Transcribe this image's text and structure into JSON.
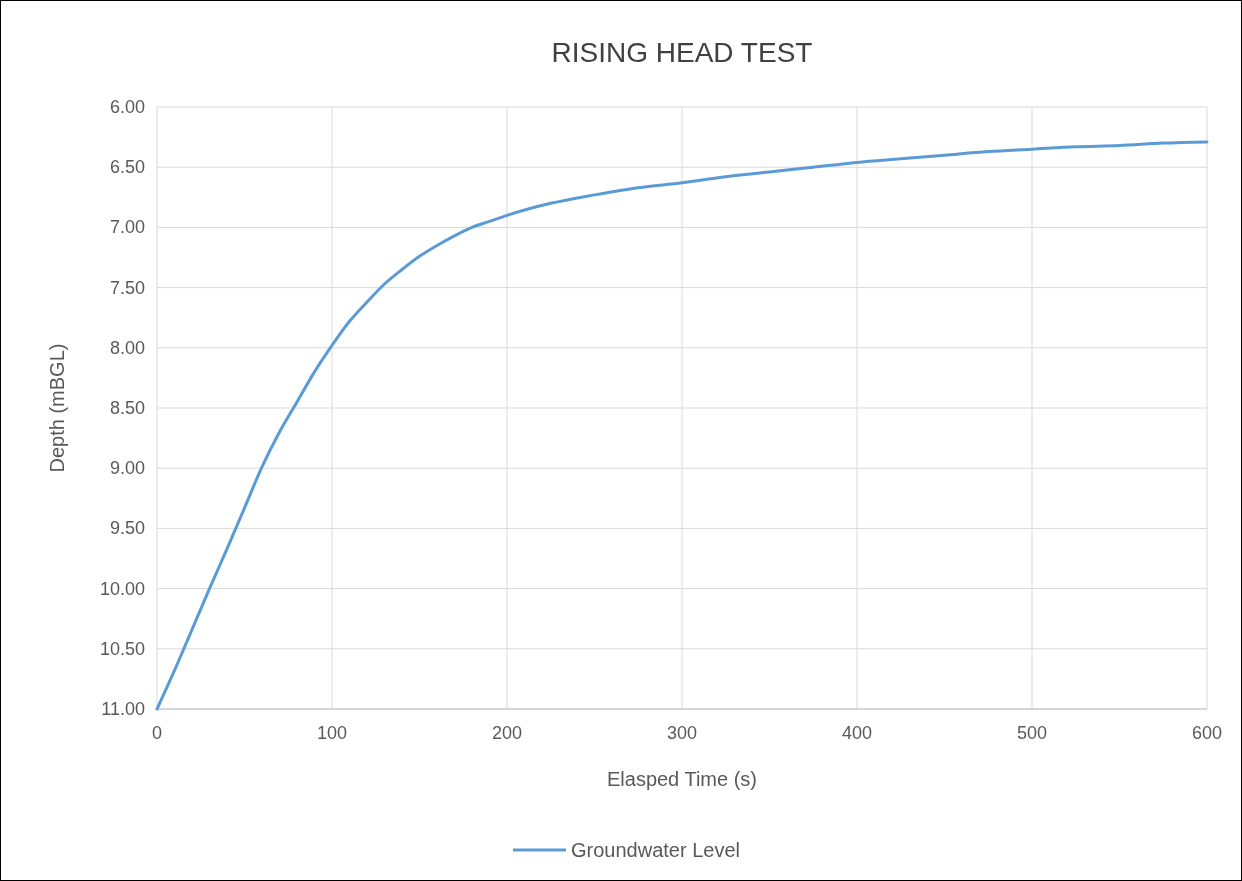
{
  "chart_data": {
    "type": "line",
    "title": "RISING HEAD TEST",
    "xlabel": "Elasped Time (s)",
    "ylabel": "Depth (mBGL)",
    "x": [
      0,
      10,
      20,
      30,
      40,
      50,
      60,
      70,
      80,
      90,
      100,
      110,
      120,
      130,
      140,
      150,
      160,
      170,
      180,
      190,
      200,
      225,
      250,
      275,
      300,
      325,
      350,
      375,
      400,
      425,
      450,
      475,
      500,
      525,
      550,
      575,
      600
    ],
    "series": [
      {
        "name": "Groundwater Level",
        "color": "#5b9bd5",
        "values": [
          11.0,
          10.68,
          10.34,
          10.0,
          9.67,
          9.33,
          8.99,
          8.7,
          8.45,
          8.2,
          7.98,
          7.78,
          7.62,
          7.47,
          7.35,
          7.24,
          7.15,
          7.07,
          7.0,
          6.95,
          6.9,
          6.8,
          6.73,
          6.67,
          6.63,
          6.58,
          6.54,
          6.5,
          6.46,
          6.43,
          6.4,
          6.37,
          6.35,
          6.33,
          6.32,
          6.3,
          6.29
        ]
      }
    ],
    "xlim": [
      0,
      600
    ],
    "xticks": [
      0,
      100,
      200,
      300,
      400,
      500,
      600
    ],
    "ylim": [
      11,
      6
    ],
    "yticks": [
      {
        "value": 6,
        "label": "6.00"
      },
      {
        "value": 6.5,
        "label": "6.50"
      },
      {
        "value": 7,
        "label": "7.00"
      },
      {
        "value": 7.5,
        "label": "7.50"
      },
      {
        "value": 8,
        "label": "8.00"
      },
      {
        "value": 8.5,
        "label": "8.50"
      },
      {
        "value": 9,
        "label": "9.00"
      },
      {
        "value": 9.5,
        "label": "9.50"
      },
      {
        "value": 10,
        "label": "10.00"
      },
      {
        "value": 10.5,
        "label": "10.50"
      },
      {
        "value": 11,
        "label": "11.00"
      }
    ],
    "grid": true,
    "legend": "bottom",
    "marker": "none",
    "line_style": "solid"
  }
}
